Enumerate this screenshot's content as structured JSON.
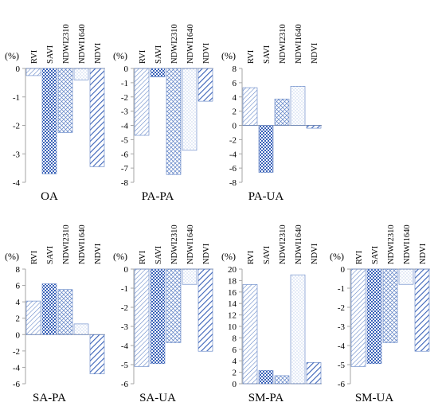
{
  "chart_data": [
    {
      "type": "bar",
      "title": "OA",
      "ylabel": "(%)",
      "categories": [
        "RVI",
        "SAVI",
        "NDWI2310",
        "NDWI1640",
        "NDVI"
      ],
      "values": [
        -0.25,
        -3.7,
        -2.25,
        -0.4,
        -3.45
      ],
      "ylim": [
        -4,
        0
      ],
      "yticks": [
        0,
        -1,
        -2,
        -3,
        -4
      ],
      "grid": false
    },
    {
      "type": "bar",
      "title": "PA-PA",
      "ylabel": "(%)",
      "categories": [
        "RVI",
        "SAVI",
        "NDWI2310",
        "NDWI1640",
        "NDVI"
      ],
      "values": [
        -4.7,
        -0.6,
        -7.45,
        -5.75,
        -2.3
      ],
      "ylim": [
        -8,
        0
      ],
      "yticks": [
        0,
        -1,
        -2,
        -3,
        -4,
        -5,
        -6,
        -7,
        -8
      ],
      "grid": false
    },
    {
      "type": "bar",
      "title": "PA-UA",
      "ylabel": "(%)",
      "categories": [
        "RVI",
        "SAVI",
        "NDWI2310",
        "NDWI1640",
        "NDVI"
      ],
      "values": [
        5.3,
        -6.6,
        3.7,
        5.5,
        -0.4
      ],
      "ylim": [
        -8,
        8
      ],
      "yticks": [
        8,
        6,
        4,
        2,
        0,
        -2,
        -4,
        -6,
        -8
      ],
      "grid": false
    },
    {
      "type": "bar",
      "title": "SA-PA",
      "ylabel": "(%)",
      "categories": [
        "RVI",
        "SAVI",
        "NDWI2310",
        "NDWI1640",
        "NDVI"
      ],
      "values": [
        4.1,
        6.2,
        5.5,
        1.3,
        -4.8
      ],
      "ylim": [
        -6,
        8
      ],
      "yticks": [
        8,
        6,
        4,
        2,
        0,
        -2,
        -4,
        -6
      ],
      "grid": false
    },
    {
      "type": "bar",
      "title": "SA-UA",
      "ylabel": "(%)",
      "categories": [
        "RVI",
        "SAVI",
        "NDWI2310",
        "NDWI1640",
        "NDVI"
      ],
      "values": [
        -5.1,
        -4.95,
        -3.85,
        -0.8,
        -4.3
      ],
      "ylim": [
        -6,
        0
      ],
      "yticks": [
        0,
        -1,
        -2,
        -3,
        -4,
        -5,
        -6
      ],
      "grid": false
    },
    {
      "type": "bar",
      "title": "SM-PA",
      "ylabel": "(%)",
      "categories": [
        "RVI",
        "SAVI",
        "NDWI2310",
        "NDWI1640",
        "NDVI"
      ],
      "values": [
        17.3,
        2.3,
        1.4,
        19.0,
        3.7
      ],
      "ylim": [
        0,
        20
      ],
      "yticks": [
        20,
        18,
        16,
        14,
        12,
        10,
        8,
        6,
        4,
        2,
        0
      ],
      "grid": false
    },
    {
      "type": "bar",
      "title": "SM-UA",
      "ylabel": "(%)",
      "categories": [
        "RVI",
        "SAVI",
        "NDWI2310",
        "NDWI1640",
        "NDVI"
      ],
      "values": [
        -5.1,
        -4.95,
        -3.85,
        -0.8,
        -4.3
      ],
      "ylim": [
        -6,
        0
      ],
      "yticks": [
        0,
        -1,
        -2,
        -3,
        -4,
        -5,
        -6
      ],
      "grid": false
    }
  ],
  "colors": {
    "bar_stroke": "#5b7fc4",
    "bar_dark": "#3a62b8",
    "axis": "#a6a6a6"
  }
}
